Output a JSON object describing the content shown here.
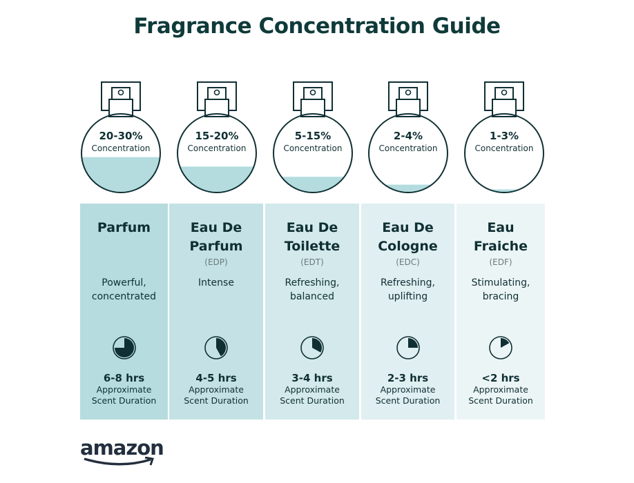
{
  "title": "Fragrance Concentration Guide",
  "concentration_label": "Concentration",
  "duration_label_1": "Approximate",
  "duration_label_2": "Scent Duration",
  "logo": "amazon",
  "colors": {
    "dark": "#0f2f33",
    "liquid": "#b4dcdf"
  },
  "types": [
    {
      "percent": "20-30%",
      "fill_level": 0.45,
      "name": "Parfum",
      "abbr": "",
      "desc": "Powerful, concentrated",
      "hours": "6-8 hrs",
      "clock_fraction": 0.75,
      "bg": "#b6dcdf"
    },
    {
      "percent": "15-20%",
      "fill_level": 0.33,
      "name": "Eau De Parfum",
      "abbr": "(EDP)",
      "desc": "Intense",
      "hours": "4-5 hrs",
      "clock_fraction": 0.42,
      "bg": "#c4e2e5"
    },
    {
      "percent": "5-15%",
      "fill_level": 0.2,
      "name": "Eau De Toilette",
      "abbr": "(EDT)",
      "desc": "Refreshing, balanced",
      "hours": "3-4 hrs",
      "clock_fraction": 0.33,
      "bg": "#d3e9eb"
    },
    {
      "percent": "2-4%",
      "fill_level": 0.1,
      "name": "Eau De Cologne",
      "abbr": "(EDC)",
      "desc": "Refreshing, uplifting",
      "hours": "2-3 hrs",
      "clock_fraction": 0.25,
      "bg": "#e0eff1"
    },
    {
      "percent": "1-3%",
      "fill_level": 0.04,
      "name": "Eau Fraiche",
      "abbr": "(EDF)",
      "desc": "Stimulating, bracing",
      "hours": "<2 hrs",
      "clock_fraction": 0.17,
      "bg": "#ecf5f6"
    }
  ]
}
